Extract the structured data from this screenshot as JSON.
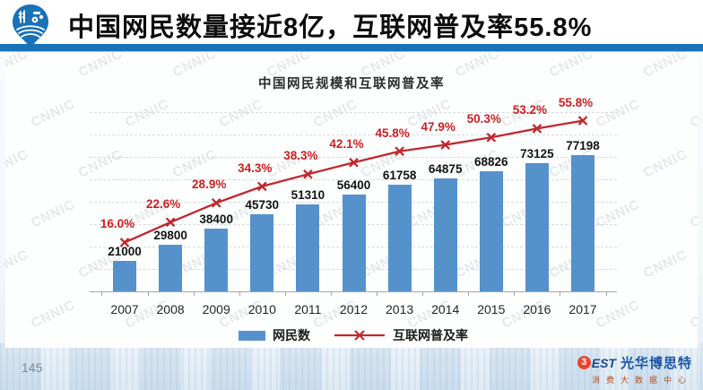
{
  "header": {
    "title": "中国网民数量接近8亿，互联网普及率55.8%"
  },
  "page_number": "145",
  "watermark": "CNNIC",
  "footer_logo": {
    "mark": "3",
    "brand": "EST",
    "name": "光华博思特",
    "subtitle": "消费大数据中心"
  },
  "colors": {
    "bar": "#5592cc",
    "line": "#c1272d",
    "percent_label": "#cc2020",
    "header_bar": "#1a72b8"
  },
  "chart_data": {
    "type": "bar",
    "title": "中国网民规模和互联网普及率",
    "categories": [
      "2007",
      "2008",
      "2009",
      "2010",
      "2011",
      "2012",
      "2013",
      "2014",
      "2015",
      "2016",
      "2017"
    ],
    "series": [
      {
        "name": "网民数",
        "type": "bar",
        "color": "#5592cc",
        "values": [
          21000,
          29800,
          38400,
          45730,
          51310,
          56400,
          61758,
          64875,
          68826,
          73125,
          77198
        ]
      },
      {
        "name": "互联网普及率",
        "type": "line",
        "color": "#c1272d",
        "values": [
          16.0,
          22.6,
          28.9,
          34.3,
          38.3,
          42.1,
          45.8,
          47.9,
          50.3,
          53.2,
          55.8
        ],
        "labels": [
          "16.0%",
          "22.6%",
          "28.9%",
          "34.3%",
          "38.3%",
          "42.1%",
          "45.8%",
          "47.9%",
          "50.3%",
          "53.2%",
          "55.8%"
        ]
      }
    ],
    "legend": [
      "网民数",
      "互联网普及率"
    ],
    "legend_position": "bottom",
    "grid": true,
    "line_axis_range": [
      0,
      63
    ]
  }
}
